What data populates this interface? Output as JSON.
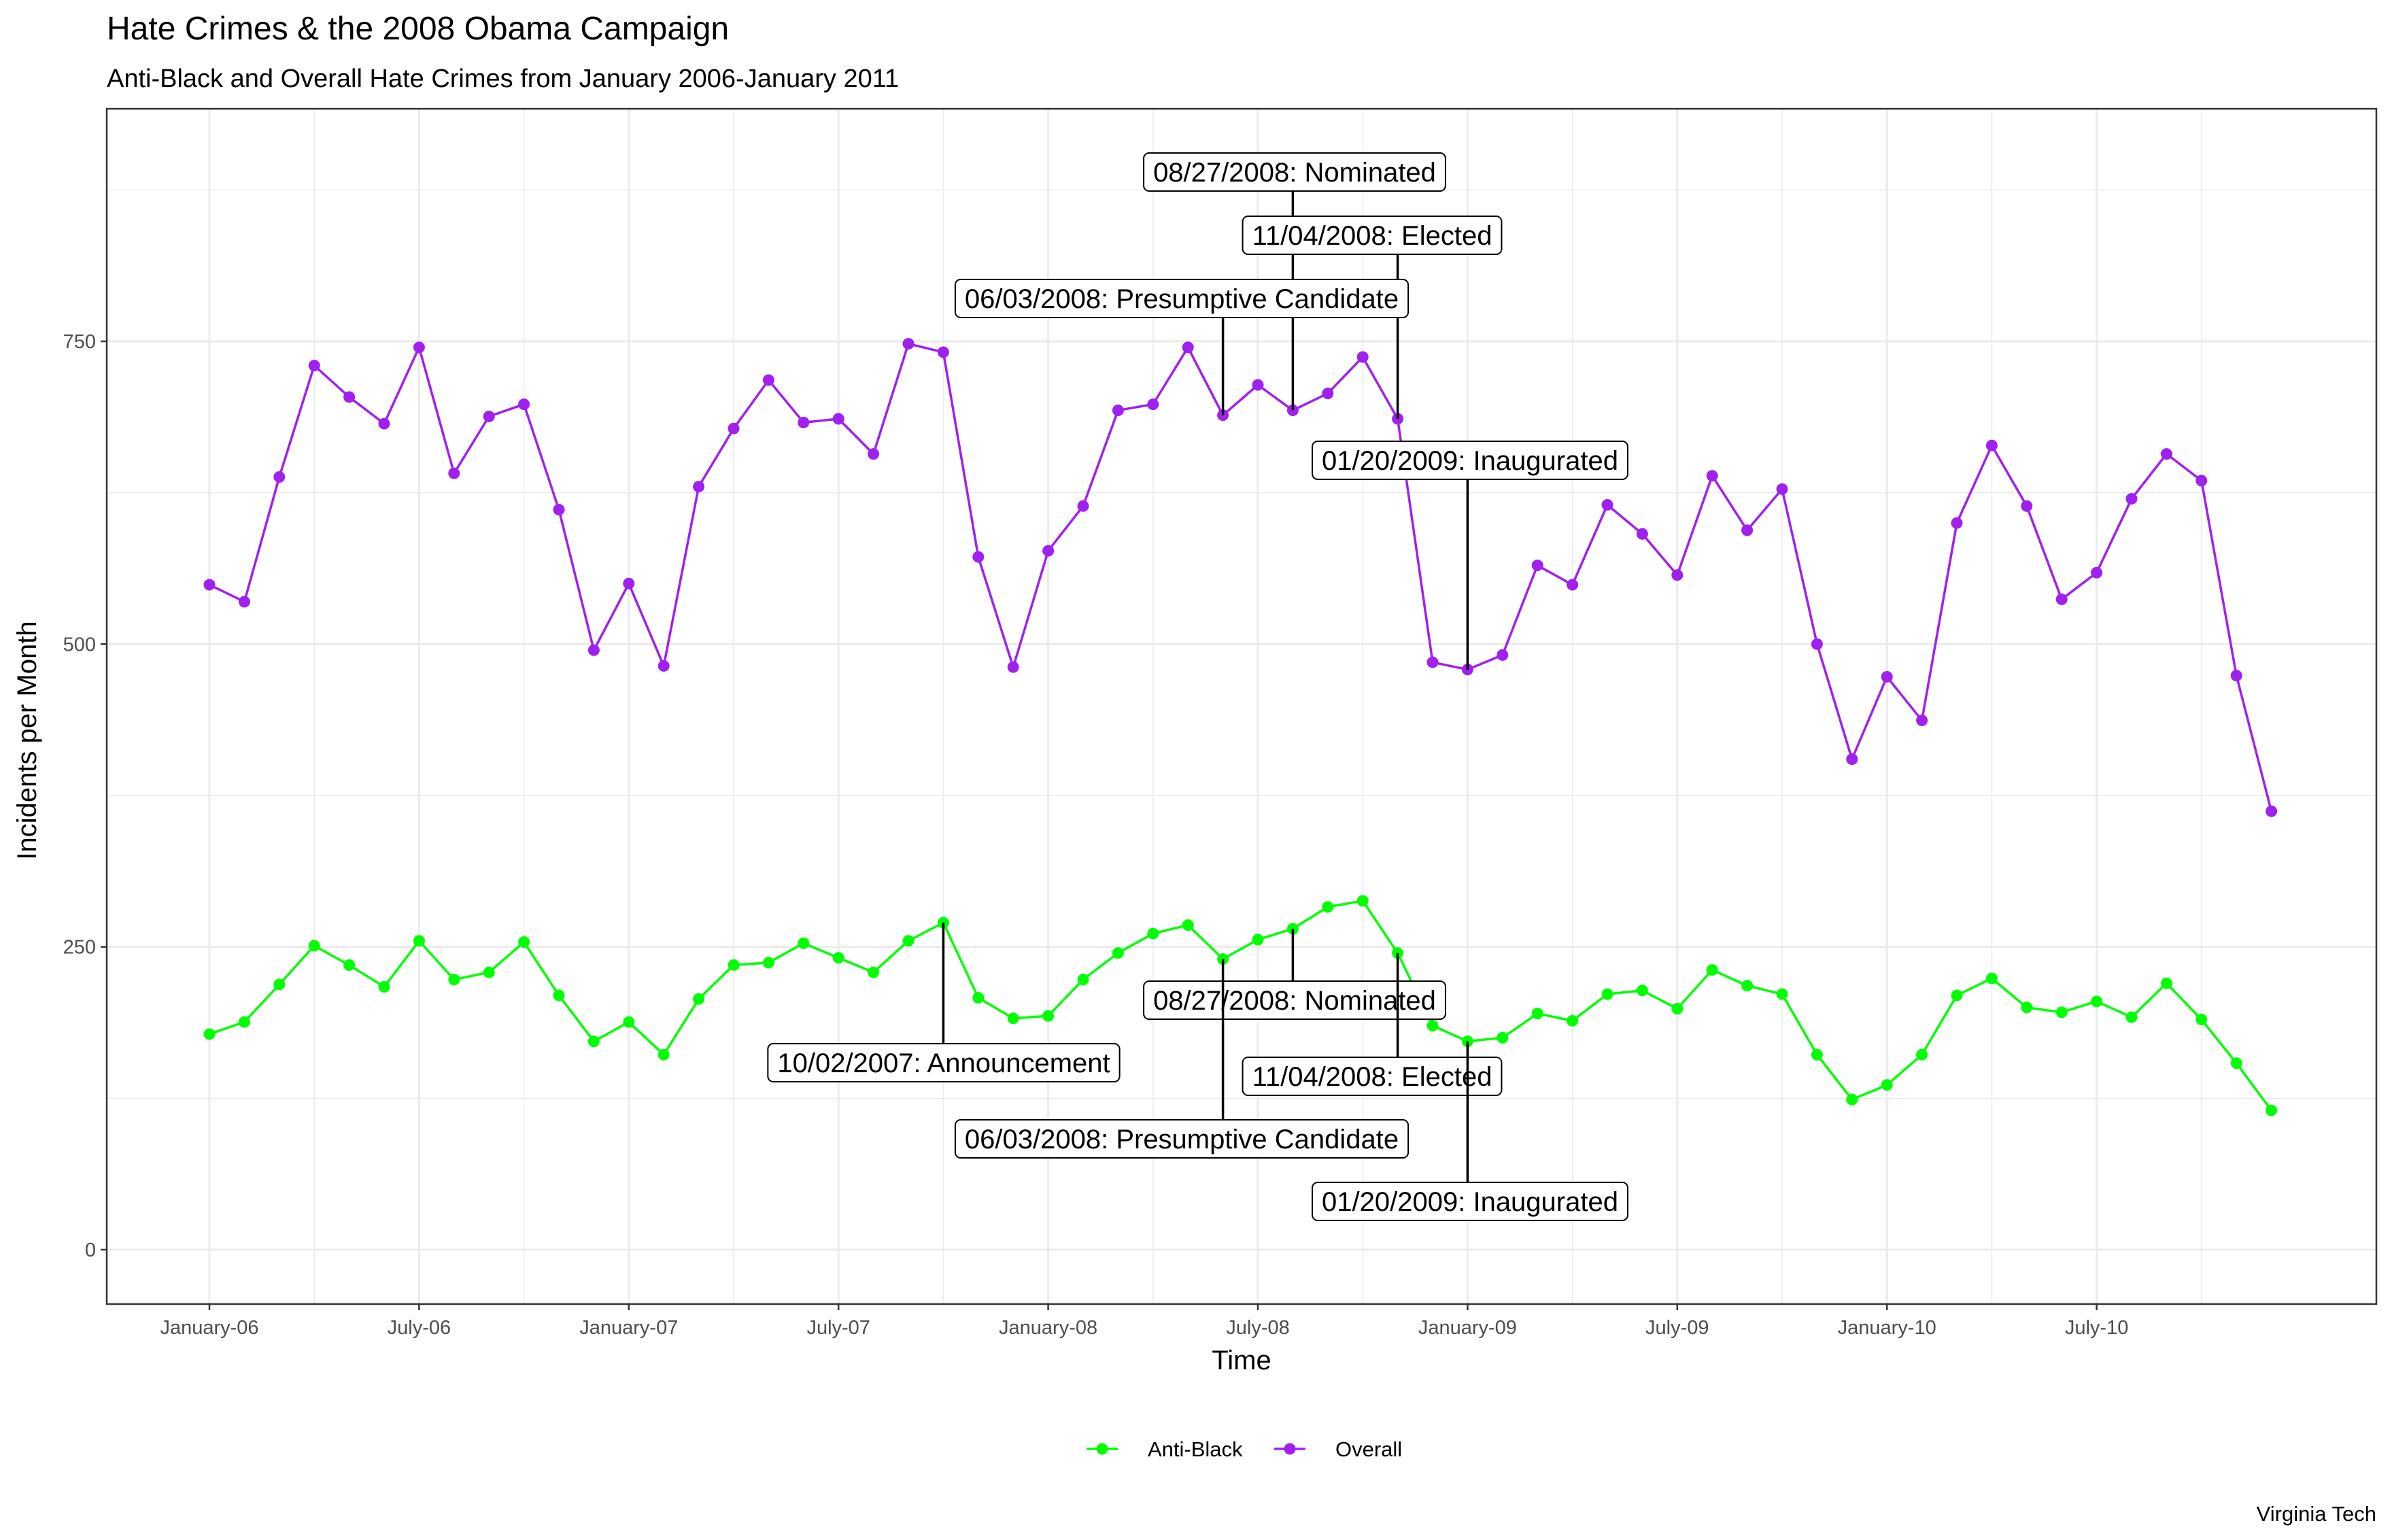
{
  "chart_data": {
    "type": "line",
    "title": "Hate Crimes & the 2008 Obama Campaign",
    "subtitle": "Anti-Black and Overall Hate Crimes from January 2006-January 2011",
    "xlabel": "Time",
    "ylabel": "Incidents per Month",
    "caption": "Virginia Tech",
    "ylim": [
      -40,
      950
    ],
    "xlim": [
      "2005-11",
      "2011-04"
    ],
    "y_ticks": [
      0,
      250,
      500,
      750
    ],
    "x_ticks": [
      {
        "date": "2006-01",
        "label": "January-06"
      },
      {
        "date": "2006-07",
        "label": "July-06"
      },
      {
        "date": "2007-01",
        "label": "January-07"
      },
      {
        "date": "2007-07",
        "label": "July-07"
      },
      {
        "date": "2008-01",
        "label": "January-08"
      },
      {
        "date": "2008-07",
        "label": "July-08"
      },
      {
        "date": "2009-01",
        "label": "January-09"
      },
      {
        "date": "2009-07",
        "label": "July-09"
      },
      {
        "date": "2010-01",
        "label": "January-10"
      },
      {
        "date": "2010-07",
        "label": "July-10"
      }
    ],
    "grid": true,
    "legend_position": "bottom",
    "x": [
      "2006-01",
      "2006-02",
      "2006-03",
      "2006-04",
      "2006-05",
      "2006-06",
      "2006-07",
      "2006-08",
      "2006-09",
      "2006-10",
      "2006-11",
      "2006-12",
      "2007-01",
      "2007-02",
      "2007-03",
      "2007-04",
      "2007-05",
      "2007-06",
      "2007-07",
      "2007-08",
      "2007-09",
      "2007-10",
      "2007-11",
      "2007-12",
      "2008-01",
      "2008-02",
      "2008-03",
      "2008-04",
      "2008-05",
      "2008-06",
      "2008-07",
      "2008-08",
      "2008-09",
      "2008-10",
      "2008-11",
      "2008-12",
      "2009-01",
      "2009-02",
      "2009-03",
      "2009-04",
      "2009-05",
      "2009-06",
      "2009-07",
      "2009-08",
      "2009-09",
      "2009-10",
      "2009-11",
      "2009-12",
      "2010-01",
      "2010-02",
      "2010-03",
      "2010-04",
      "2010-05",
      "2010-06",
      "2010-07",
      "2010-08",
      "2010-09",
      "2010-10",
      "2010-11",
      "2010-12"
    ],
    "series": [
      {
        "name": "Anti-Black",
        "color": "#00ff00",
        "values": [
          178,
          188,
          219,
          251,
          235,
          217,
          255,
          223,
          229,
          254,
          210,
          172,
          188,
          161,
          207,
          235,
          237,
          253,
          241,
          229,
          255,
          270,
          208,
          191,
          193,
          223,
          245,
          261,
          268,
          240,
          256,
          265,
          283,
          288,
          245,
          185,
          172,
          175,
          195,
          189,
          211,
          214,
          199,
          231,
          218,
          211,
          161,
          124,
          136,
          161,
          210,
          224,
          200,
          196,
          205,
          192,
          220,
          190,
          154,
          115
        ]
      },
      {
        "name": "Overall",
        "color": "#a020f0",
        "values": [
          549,
          535,
          638,
          730,
          704,
          682,
          745,
          641,
          688,
          698,
          611,
          495,
          550,
          482,
          630,
          678,
          718,
          683,
          686,
          657,
          748,
          741,
          572,
          481,
          577,
          614,
          693,
          698,
          745,
          689,
          714,
          693,
          707,
          737,
          686,
          485,
          479,
          491,
          565,
          549,
          615,
          591,
          557,
          639,
          594,
          628,
          500,
          405,
          473,
          437,
          600,
          664,
          614,
          537,
          559,
          620,
          657,
          635,
          474,
          362
        ]
      }
    ],
    "annotations": [
      {
        "text": "08/27/2008: Nominated",
        "date": "2008-08",
        "series": "Overall"
      },
      {
        "text": "11/04/2008: Elected",
        "date": "2008-11",
        "series": "Overall"
      },
      {
        "text": "06/03/2008: Presumptive Candidate",
        "date": "2008-06",
        "series": "Overall"
      },
      {
        "text": "01/20/2009: Inaugurated",
        "date": "2009-01",
        "series": "Overall"
      },
      {
        "text": "10/02/2007: Announcement",
        "date": "2007-10",
        "series": "Anti-Black"
      },
      {
        "text": "08/27/2008: Nominated",
        "date": "2008-08",
        "series": "Anti-Black"
      },
      {
        "text": "11/04/2008: Elected",
        "date": "2008-11",
        "series": "Anti-Black"
      },
      {
        "text": "06/03/2008: Presumptive Candidate",
        "date": "2008-06",
        "series": "Anti-Black"
      },
      {
        "text": "01/20/2009: Inaugurated",
        "date": "2009-01",
        "series": "Anti-Black"
      }
    ]
  }
}
